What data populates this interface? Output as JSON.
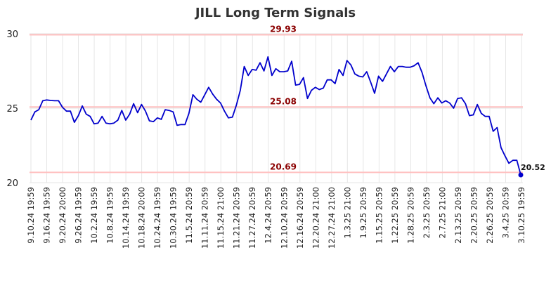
{
  "chart_data": {
    "type": "line",
    "title": "JILL Long Term Signals",
    "ylim": [
      20,
      30
    ],
    "yticks": [
      20,
      25,
      30
    ],
    "grid": true,
    "x_tick_labels": [
      "9.10.24 19:59",
      "9.16.24 19:59",
      "9.20.24 20:00",
      "9.26.24 19:59",
      "10.2.24 19:59",
      "10.8.24 19:59",
      "10.14.24 19:59",
      "10.18.24 20:00",
      "10.24.24 19:59",
      "10.30.24 19:59",
      "11.5.24 20:59",
      "11.11.24 20:59",
      "11.15.24 21:00",
      "11.21.24 20:59",
      "11.27.24 20:59",
      "12.4.24 20:59",
      "12.10.24 20:59",
      "12.16.24 20:59",
      "12.20.24 21:00",
      "12.27.24 21:00",
      "1.3.25 21:00",
      "1.9.25 20:59",
      "1.15.25 20:59",
      "1.22.25 20:59",
      "1.28.25 20:59",
      "2.3.25 20:59",
      "2.7.25 21:00",
      "2.13.25 20:59",
      "2.20.25 20:59",
      "2.26.25 20:59",
      "3.4.25 20:59",
      "3.10.25 19:59"
    ],
    "reference_lines": [
      {
        "value": 29.93,
        "label": "29.93"
      },
      {
        "value": 25.08,
        "label": "25.08"
      },
      {
        "value": 20.69,
        "label": "20.69"
      }
    ],
    "series": [
      {
        "color": "#0000cc",
        "values": [
          24.2,
          24.75,
          24.9,
          25.5,
          25.55,
          25.52,
          25.5,
          25.5,
          25.05,
          24.8,
          24.8,
          24.05,
          24.5,
          25.15,
          24.6,
          24.45,
          23.95,
          24.0,
          24.45,
          24.0,
          23.95,
          24.0,
          24.2,
          24.85,
          24.2,
          24.6,
          25.3,
          24.7,
          25.25,
          24.8,
          24.15,
          24.1,
          24.35,
          24.25,
          24.9,
          24.85,
          24.75,
          23.85,
          23.9,
          23.9,
          24.65,
          25.9,
          25.6,
          25.4,
          25.9,
          26.4,
          25.95,
          25.6,
          25.35,
          24.8,
          24.35,
          24.4,
          25.2,
          26.2,
          27.8,
          27.2,
          27.6,
          27.55,
          28.05,
          27.5,
          28.45,
          27.2,
          27.65,
          27.45,
          27.45,
          27.5,
          28.15,
          26.55,
          26.6,
          27.05,
          25.65,
          26.2,
          26.4,
          26.25,
          26.35,
          26.9,
          26.9,
          26.65,
          27.6,
          27.2,
          28.2,
          27.9,
          27.3,
          27.15,
          27.1,
          27.45,
          26.75,
          26.0,
          27.15,
          26.8,
          27.3,
          27.8,
          27.45,
          27.8,
          27.8,
          27.75,
          27.75,
          27.85,
          28.05,
          27.4,
          26.5,
          25.7,
          25.3,
          25.7,
          25.35,
          25.5,
          25.35,
          25.0,
          25.65,
          25.7,
          25.3,
          24.5,
          24.55,
          25.25,
          24.65,
          24.45,
          24.45,
          23.45,
          23.7,
          22.35,
          21.8,
          21.3,
          21.5,
          21.5,
          20.52
        ],
        "last_label": "20.52"
      }
    ]
  }
}
